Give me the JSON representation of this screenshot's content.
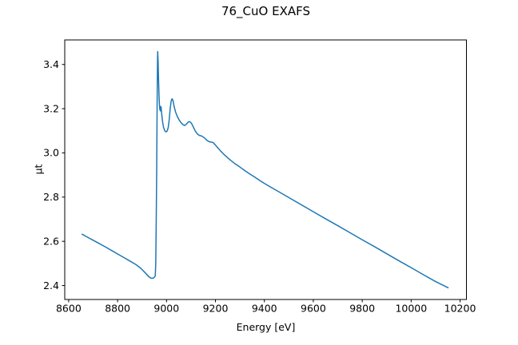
{
  "chart_data": {
    "type": "line",
    "title": "76_CuO EXAFS",
    "xlabel": "Energy [eV]",
    "ylabel": "μt",
    "xlim": [
      8584,
      10226
    ],
    "ylim": [
      2.337,
      3.511
    ],
    "xticks": [
      8600,
      8800,
      9000,
      9200,
      9400,
      9600,
      9800,
      10000,
      10200
    ],
    "ytick_labels": [
      "2.4",
      "2.6",
      "2.8",
      "3.0",
      "3.2",
      "3.4"
    ],
    "yticks": [
      2.4,
      2.6,
      2.8,
      3.0,
      3.2,
      3.4
    ],
    "grid": false,
    "line_color": "#1f77b4",
    "axis_color": "#000000",
    "background_color": "#ffffff",
    "series": [
      {
        "name": "76_CuO",
        "points": [
          [
            8655,
            2.632
          ],
          [
            8680,
            2.617
          ],
          [
            8700,
            2.605
          ],
          [
            8725,
            2.59
          ],
          [
            8750,
            2.575
          ],
          [
            8775,
            2.559
          ],
          [
            8800,
            2.543
          ],
          [
            8825,
            2.527
          ],
          [
            8850,
            2.511
          ],
          [
            8875,
            2.495
          ],
          [
            8895,
            2.478
          ],
          [
            8910,
            2.461
          ],
          [
            8922,
            2.447
          ],
          [
            8930,
            2.438
          ],
          [
            8938,
            2.433
          ],
          [
            8945,
            2.433
          ],
          [
            8950,
            2.437
          ],
          [
            8954,
            2.444
          ],
          [
            8956,
            2.5
          ],
          [
            8958,
            2.7
          ],
          [
            8960,
            2.95
          ],
          [
            8961,
            3.12
          ],
          [
            8962,
            3.28
          ],
          [
            8963,
            3.4
          ],
          [
            8964,
            3.458
          ],
          [
            8965.5,
            3.42
          ],
          [
            8967,
            3.35
          ],
          [
            8969,
            3.27
          ],
          [
            8971,
            3.22
          ],
          [
            8973,
            3.195
          ],
          [
            8975,
            3.19
          ],
          [
            8976.5,
            3.21
          ],
          [
            8978,
            3.205
          ],
          [
            8980,
            3.18
          ],
          [
            8984,
            3.14
          ],
          [
            8988,
            3.115
          ],
          [
            8993,
            3.1
          ],
          [
            8998,
            3.095
          ],
          [
            9003,
            3.1
          ],
          [
            9007,
            3.115
          ],
          [
            9011,
            3.15
          ],
          [
            9015,
            3.2
          ],
          [
            9019,
            3.235
          ],
          [
            9023,
            3.245
          ],
          [
            9027,
            3.235
          ],
          [
            9031,
            3.21
          ],
          [
            9037,
            3.185
          ],
          [
            9044,
            3.165
          ],
          [
            9052,
            3.148
          ],
          [
            9060,
            3.136
          ],
          [
            9068,
            3.127
          ],
          [
            9075,
            3.124
          ],
          [
            9082,
            3.131
          ],
          [
            9089,
            3.14
          ],
          [
            9096,
            3.141
          ],
          [
            9103,
            3.132
          ],
          [
            9110,
            3.116
          ],
          [
            9118,
            3.098
          ],
          [
            9126,
            3.086
          ],
          [
            9134,
            3.079
          ],
          [
            9142,
            3.077
          ],
          [
            9150,
            3.072
          ],
          [
            9158,
            3.065
          ],
          [
            9166,
            3.056
          ],
          [
            9174,
            3.051
          ],
          [
            9182,
            3.049
          ],
          [
            9190,
            3.047
          ],
          [
            9198,
            3.038
          ],
          [
            9208,
            3.025
          ],
          [
            9220,
            3.01
          ],
          [
            9235,
            2.993
          ],
          [
            9250,
            2.978
          ],
          [
            9265,
            2.964
          ],
          [
            9280,
            2.951
          ],
          [
            9300,
            2.936
          ],
          [
            9320,
            2.92
          ],
          [
            9340,
            2.905
          ],
          [
            9360,
            2.891
          ],
          [
            9380,
            2.876
          ],
          [
            9400,
            2.862
          ],
          [
            9426,
            2.845
          ],
          [
            9450,
            2.83
          ],
          [
            9500,
            2.798
          ],
          [
            9550,
            2.766
          ],
          [
            9600,
            2.734
          ],
          [
            9650,
            2.702
          ],
          [
            9700,
            2.671
          ],
          [
            9750,
            2.639
          ],
          [
            9800,
            2.607
          ],
          [
            9850,
            2.576
          ],
          [
            9900,
            2.544
          ],
          [
            9950,
            2.512
          ],
          [
            10000,
            2.481
          ],
          [
            10050,
            2.449
          ],
          [
            10100,
            2.418
          ],
          [
            10151,
            2.39
          ]
        ]
      }
    ]
  }
}
